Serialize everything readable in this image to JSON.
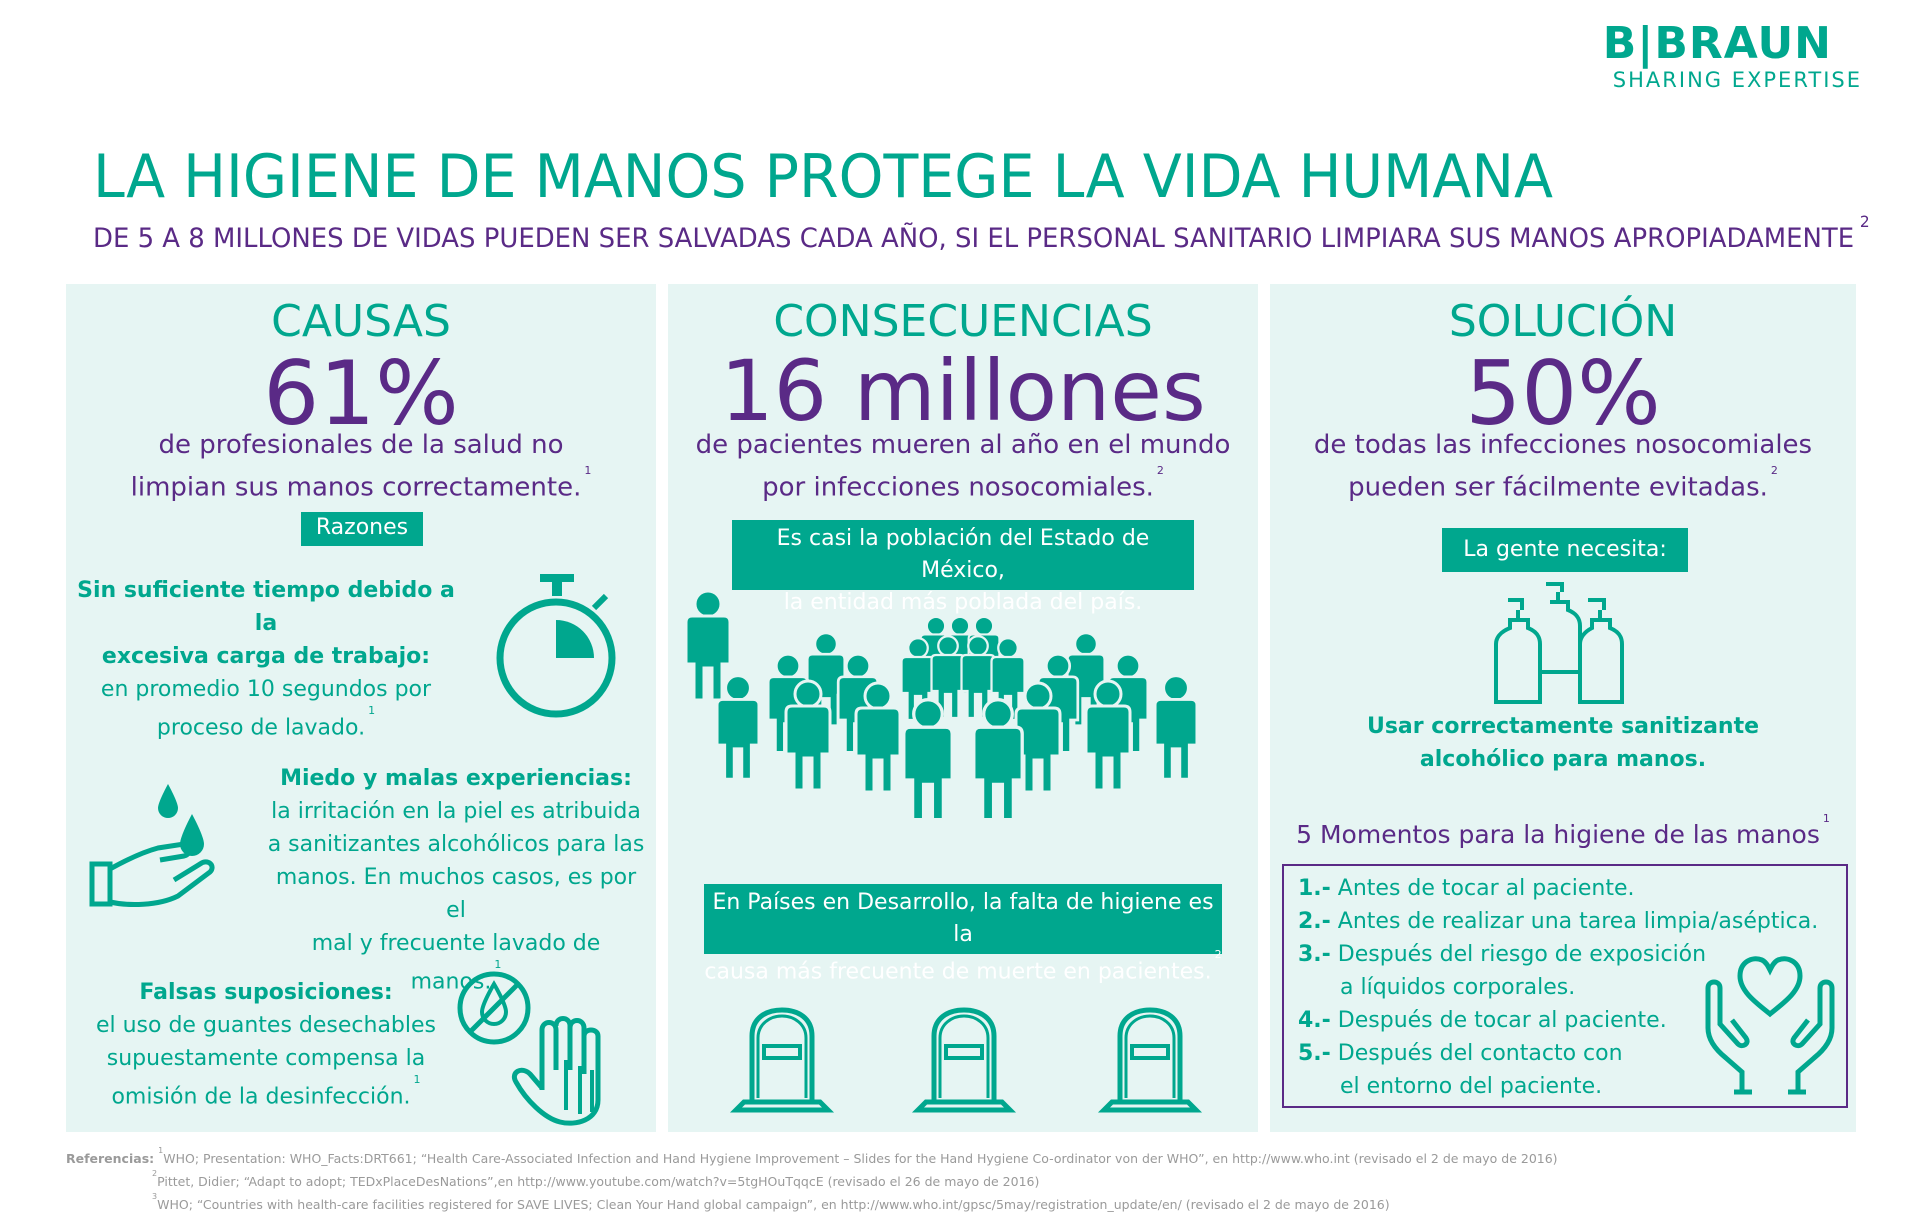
{
  "brand": {
    "name": "B|BRAUN",
    "tagline": "SHARING EXPERTISE",
    "color": "#00a78e"
  },
  "title": "LA HIGIENE DE MANOS PROTEGE LA VIDA HUMANA",
  "subtitle": {
    "text": "DE 5 A 8 MILLONES DE VIDAS PUEDEN SER SALVADAS CADA AÑO, SI EL PERSONAL SANITARIO LIMPIARA SUS MANOS APROPIADAMENTE",
    "ref": "2"
  },
  "colors": {
    "teal": "#00a78e",
    "purple": "#5a2a86",
    "panel_bg": "#e6f5f3"
  },
  "causas": {
    "heading": "CAUSAS",
    "stat": "61%",
    "desc_line1": "de profesionales de la salud no",
    "desc_line2": "limpian sus manos correctamente.",
    "desc_ref": "1",
    "badge": "Razones",
    "reason1": {
      "bold1": "Sin suficiente tiempo debido a la",
      "bold2": "excesiva carga de trabajo:",
      "line1": "en promedio 10 segundos por",
      "line2": "proceso de lavado.",
      "ref": "1",
      "icon": "stopwatch-icon"
    },
    "reason2": {
      "bold": "Miedo y malas experiencias:",
      "line1": "la irritación en la piel es atribuida",
      "line2": "a sanitizantes alcohólicos para las",
      "line3": "manos. En muchos casos, es por el",
      "line4": "mal y frecuente lavado de manos.",
      "ref": "1",
      "icon": "hand-drops-icon"
    },
    "reason3": {
      "bold": "Falsas suposiciones:",
      "line1": "el uso de guantes desechables",
      "line2": "supuestamente compensa la",
      "line3": "omisión de la desinfección.",
      "ref": "1",
      "icon": "glove-icon"
    }
  },
  "consecuencias": {
    "heading": "CONSECUENCIAS",
    "stat": "16 millones",
    "desc_line1": "de pacientes mueren al año en el mundo",
    "desc_line2": "por infecciones nosocomiales.",
    "desc_ref": "2",
    "badge_top_line1": "Es casi la población del Estado de México,",
    "badge_top_line2": "la entidad más poblada del país.",
    "badge_bottom_line1": "En Países en Desarrollo, la falta de higiene es la",
    "badge_bottom_line2": "causa más frecuente de muerte en pacientes.",
    "badge_bottom_ref": "2",
    "icons": [
      "crowd-icon",
      "tombstone-icon"
    ]
  },
  "solucion": {
    "heading": "SOLUCIÓN",
    "stat": "50%",
    "desc_line1": "de todas las infecciones nosocomiales",
    "desc_line2": "pueden ser fácilmente evitadas.",
    "desc_ref": "2",
    "badge": "La gente necesita:",
    "use_line1": "Usar correctamente sanitizante",
    "use_line2": "alcohólico para manos.",
    "moments_title": "5 Momentos para la higiene de las manos",
    "moments_ref": "1",
    "moments": [
      {
        "num": "1.-",
        "text": "Antes de tocar al paciente."
      },
      {
        "num": "2.-",
        "text": "Antes de realizar una tarea limpia/aséptica."
      },
      {
        "num": "3.-",
        "text": "Después del riesgo de exposición"
      },
      {
        "num": "",
        "text": "a líquidos corporales."
      },
      {
        "num": "4.-",
        "text": "Después de tocar al paciente."
      },
      {
        "num": "5.-",
        "text": "Después del contacto con"
      },
      {
        "num": "",
        "text": "el entorno del paciente."
      }
    ],
    "icons": [
      "sanitizer-bottles-icon",
      "hands-heart-icon"
    ]
  },
  "references": {
    "label": "Referencias:",
    "items": [
      {
        "n": "1",
        "text": "WHO; Presentation: WHO_Facts:DRT661; “Health Care-Associated Infection and Hand Hygiene Improvement – Slides for the Hand Hygiene Co-ordinator von der WHO”, en http://www.who.int (revisado el 2 de mayo de 2016)"
      },
      {
        "n": "2",
        "text": "Pittet, Didier; “Adapt to adopt; TEDxPlaceDesNations”,en http://www.youtube.com/watch?v=5tgHOuTqqcE (revisado el 26 de mayo de 2016)"
      },
      {
        "n": "3",
        "text": "WHO; “Countries with health-care facilities registered for SAVE LIVES; Clean Your Hand global campaign”, en http://www.who.int/gpsc/5may/registration_update/en/ (revisado el 2 de mayo de 2016)"
      }
    ]
  }
}
